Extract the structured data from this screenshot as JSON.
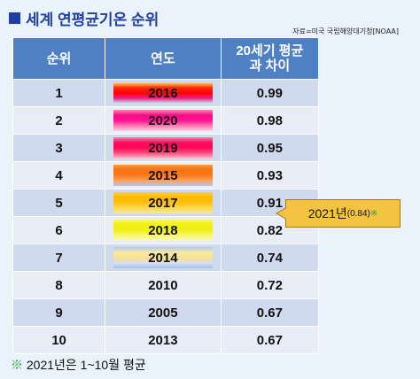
{
  "title": "세계 연평균기온 순위",
  "source": "자료=미국 국립해양대기청[NOAA]",
  "table": {
    "headers": [
      "순위",
      "연도",
      "20세기 평균",
      "과 차이"
    ],
    "rows": [
      {
        "rank": "1",
        "year": "2016",
        "diff": "0.99",
        "gradient": [
          "#f6e35a",
          "#ff2a10",
          "#ff0000",
          "#e8228a",
          "#c8e8f0"
        ]
      },
      {
        "rank": "2",
        "year": "2020",
        "diff": "0.98",
        "gradient": [
          "#ff8ab0",
          "#ff0a8a",
          "#ff1090",
          "#ff7ab0",
          "#ffd0e0"
        ]
      },
      {
        "rank": "3",
        "year": "2019",
        "diff": "0.95",
        "gradient": [
          "#ff80a0",
          "#ff0a60",
          "#ff0a5a",
          "#ff5080",
          "#ffc0d0"
        ]
      },
      {
        "rank": "4",
        "year": "2015",
        "diff": "0.93",
        "gradient": [
          "#ff9a3a",
          "#ff7010",
          "#ff7a18",
          "#ffa060",
          "#b0c8f0"
        ]
      },
      {
        "rank": "5",
        "year": "2017",
        "diff": "0.91",
        "gradient": [
          "#ffd040",
          "#ffb800",
          "#ffc010",
          "#ffd850",
          "#f0e8b0"
        ]
      },
      {
        "rank": "6",
        "year": "2018",
        "diff": "0.82",
        "gradient": [
          "#f8f860",
          "#f0f010",
          "#f0f018",
          "#f8f870",
          "#f8f8c0"
        ]
      },
      {
        "rank": "7",
        "year": "2014",
        "diff": "0.74",
        "gradient": [
          "#b0c8f0",
          "#f8e8a0",
          "#f8e090",
          "#d8e0e8",
          "#a0c0f0"
        ]
      },
      {
        "rank": "8",
        "year": "2010",
        "diff": "0.72",
        "gradient": null
      },
      {
        "rank": "9",
        "year": "2005",
        "diff": "0.67",
        "gradient": null
      },
      {
        "rank": "10",
        "year": "2013",
        "diff": "0.67",
        "gradient": null
      }
    ]
  },
  "callout": {
    "year": "2021년",
    "value": "(0.84)",
    "mark": "※"
  },
  "footnote": {
    "mark": "※",
    "text": "2021년은 1~10월 평균"
  },
  "colors": {
    "title": "#1f3fa0",
    "header_bg": "#4f80c4",
    "callout_bg": "#f4c342"
  }
}
